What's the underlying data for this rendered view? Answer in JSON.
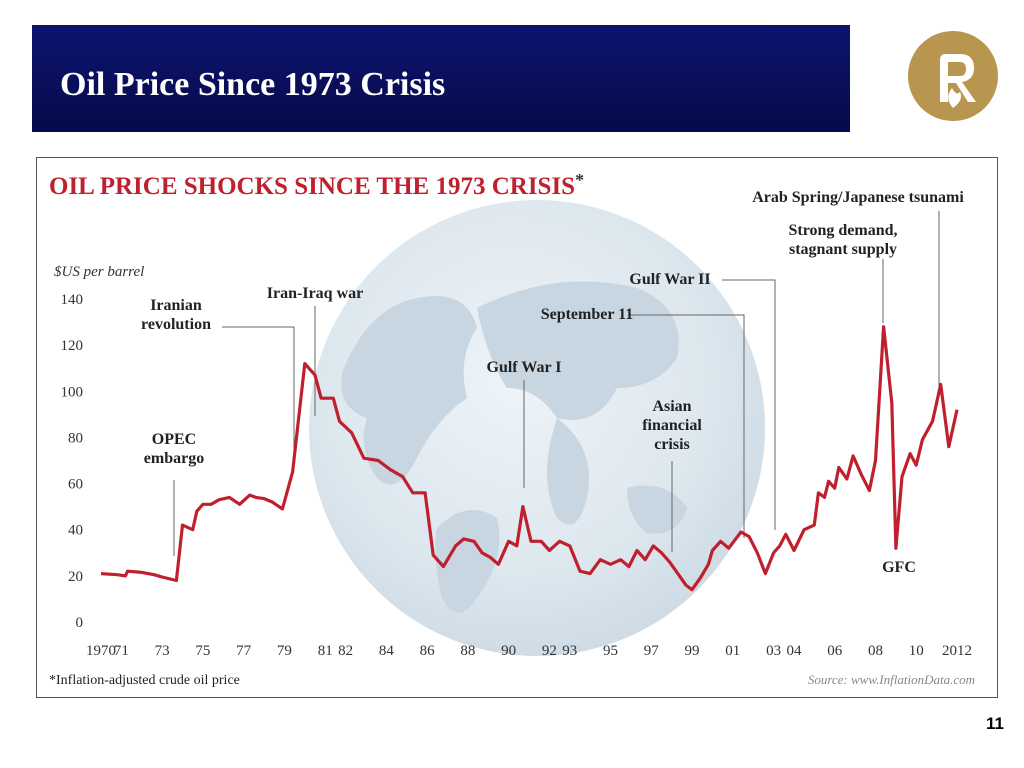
{
  "slide": {
    "title": "Oil Price Since 1973 Crisis",
    "page_number": "11"
  },
  "colors": {
    "title_bar": "#0a0f5e",
    "logo_gold": "#b8964f",
    "line": "#c0202e",
    "chart_title": "#c0202e",
    "globe": "#dde7ee"
  },
  "logo": {
    "icon": "reliance-logo-icon"
  },
  "chart_data": {
    "type": "line",
    "title": "OIL PRICE SHOCKS SINCE THE 1973 CRISIS",
    "title_mark": "*",
    "ylabel": "$US per barrel",
    "ylim": [
      0,
      140
    ],
    "y_ticks": [
      "0",
      "20",
      "40",
      "60",
      "80",
      "100",
      "120",
      "140"
    ],
    "x_ticks": [
      {
        "year": 1970,
        "label": "1970"
      },
      {
        "year": 1971,
        "label": "71"
      },
      {
        "year": 1973,
        "label": "73"
      },
      {
        "year": 1975,
        "label": "75"
      },
      {
        "year": 1977,
        "label": "77"
      },
      {
        "year": 1979,
        "label": "79"
      },
      {
        "year": 1981,
        "label": "81"
      },
      {
        "year": 1982,
        "label": "82"
      },
      {
        "year": 1984,
        "label": "84"
      },
      {
        "year": 1986,
        "label": "86"
      },
      {
        "year": 1988,
        "label": "88"
      },
      {
        "year": 1990,
        "label": "90"
      },
      {
        "year": 1992,
        "label": "92"
      },
      {
        "year": 1993,
        "label": "93"
      },
      {
        "year": 1995,
        "label": "95"
      },
      {
        "year": 1997,
        "label": "97"
      },
      {
        "year": 1999,
        "label": "99"
      },
      {
        "year": 2001,
        "label": "01"
      },
      {
        "year": 2003,
        "label": "03"
      },
      {
        "year": 2004,
        "label": "04"
      },
      {
        "year": 2006,
        "label": "06"
      },
      {
        "year": 2008,
        "label": "08"
      },
      {
        "year": 2010,
        "label": "10"
      },
      {
        "year": 2012,
        "label": "2012"
      }
    ],
    "series": [
      {
        "x": [
          1970.0,
          1970.8,
          1971.2,
          1971.3,
          1972.0,
          1972.6,
          1973.0,
          1973.7,
          1974.0,
          1974.5,
          1974.7,
          1975.0,
          1975.4,
          1975.8,
          1976.3,
          1976.8,
          1977.3,
          1977.6,
          1978.0,
          1978.4,
          1978.9,
          1979.4,
          1980.0,
          1980.5,
          1980.8,
          1981.4,
          1981.7,
          1982.3,
          1982.9,
          1983.6,
          1984.2,
          1984.8,
          1985.3,
          1985.9,
          1986.3,
          1986.8,
          1987.4,
          1987.8,
          1988.3,
          1988.7,
          1989.1,
          1989.5,
          1990.0,
          1990.4,
          1990.7,
          1991.1,
          1991.6,
          1992.0,
          1992.5,
          1993.0,
          1993.5,
          1994.0,
          1994.5,
          1995.0,
          1995.5,
          1995.9,
          1996.3,
          1996.7,
          1997.1,
          1997.5,
          1997.9,
          1998.3,
          1998.7,
          1999.0,
          1999.4,
          1999.8,
          2000.0,
          2000.4,
          2000.8,
          2001.4,
          2001.8,
          2002.2,
          2002.6,
          2003.0,
          2003.3,
          2003.6,
          2004.0,
          2004.5,
          2005.0,
          2005.2,
          2005.5,
          2005.7,
          2006.0,
          2006.2,
          2006.6,
          2006.9,
          2007.3,
          2007.7,
          2008.0,
          2008.4,
          2008.8,
          2009.0,
          2009.3,
          2009.7,
          2010.0,
          2010.3,
          2010.8,
          2011.2,
          2011.6,
          2012.0
        ],
        "y": [
          21,
          20.5,
          20,
          22,
          21.5,
          20.5,
          19.5,
          18,
          42,
          40,
          48,
          51,
          51,
          53,
          54,
          51,
          55,
          54,
          53.5,
          52,
          49,
          65,
          112,
          107,
          97,
          97,
          87,
          82,
          71,
          70,
          66,
          63,
          56,
          56,
          29,
          24,
          33,
          36,
          35,
          30,
          28,
          25,
          35,
          33,
          50,
          35,
          35,
          31,
          35,
          33,
          22,
          21,
          27,
          25,
          27,
          24,
          31,
          27,
          33,
          30,
          26,
          21,
          16,
          14,
          19,
          25,
          31,
          35,
          32,
          39,
          37,
          30,
          21,
          30,
          33,
          38,
          31,
          40,
          42,
          56,
          54,
          61,
          58,
          67,
          62,
          72,
          64,
          57,
          70,
          128,
          95,
          32,
          63,
          73,
          68,
          79,
          87,
          103,
          76,
          92
        ]
      }
    ],
    "annotations": [
      {
        "id": "opec",
        "text": [
          "OPEC",
          "embargo"
        ],
        "year": 1973.0
      },
      {
        "id": "iranian",
        "text": [
          "Iranian",
          "revolution"
        ],
        "year": 1979.3
      },
      {
        "id": "iraniraq",
        "text": [
          "Iran-Iraq war"
        ],
        "year": 1980.5
      },
      {
        "id": "gulf1",
        "text": [
          "Gulf War I"
        ],
        "year": 1990.6
      },
      {
        "id": "asian",
        "text": [
          "Asian",
          "financial",
          "crisis"
        ],
        "year": 1997.7
      },
      {
        "id": "sept11",
        "text": [
          "September 11"
        ],
        "year": 2001.6
      },
      {
        "id": "gulf2",
        "text": [
          "Gulf War II"
        ],
        "year": 2003.1
      },
      {
        "id": "demand",
        "text": [
          "Strong demand,",
          "stagnant supply"
        ],
        "year": 2008.0
      },
      {
        "id": "arab",
        "text": [
          "Arab Spring/Japanese tsunami"
        ],
        "year": 2011.0
      },
      {
        "id": "gfc",
        "text": [
          "GFC"
        ],
        "year": 2009.0
      }
    ],
    "footnote": "*Inflation-adjusted crude oil price",
    "source": "Source: www.InflationData.com",
    "grid": false
  }
}
